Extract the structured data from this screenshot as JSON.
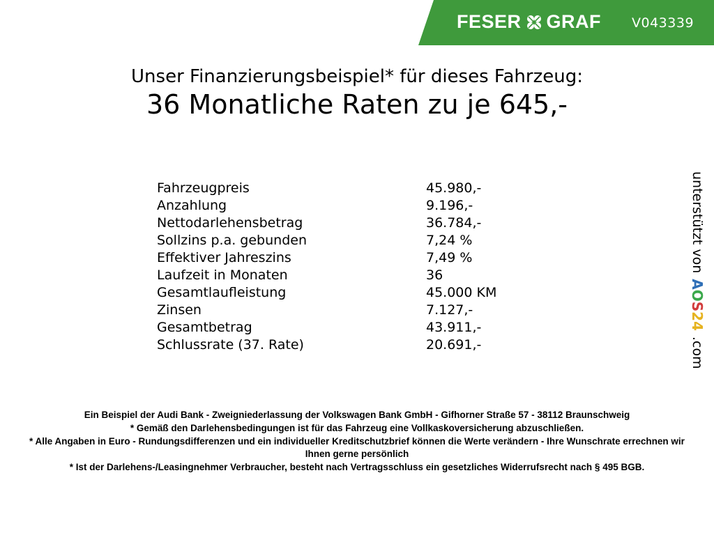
{
  "header": {
    "brand": "FESER GRAF",
    "brand_left": "FESER",
    "brand_right": "GRAF",
    "vehicle_id": "V043339",
    "brand_color": "#3f9a3c",
    "logo_icon": "clover-icon"
  },
  "title": {
    "line1": "Unser Finanzierungsbeispiel* für dieses Fahrzeug:",
    "line2": "36 Monatliche Raten zu je 645,-"
  },
  "finance_table": [
    {
      "label": "Fahrzeugpreis",
      "value": "45.980,-"
    },
    {
      "label": "Anzahlung",
      "value": "9.196,-"
    },
    {
      "label": "Nettodarlehensbetrag",
      "value": "36.784,-"
    },
    {
      "label": "Sollzins p.a. gebunden",
      "value": "7,24 %"
    },
    {
      "label": "Effektiver Jahreszins",
      "value": "7,49 %"
    },
    {
      "label": "Laufzeit in Monaten",
      "value": "36"
    },
    {
      "label": "Gesamtlaufleistung",
      "value": "45.000 KM"
    },
    {
      "label": "Zinsen",
      "value": "7.127,-"
    },
    {
      "label": "Gesamtbetrag",
      "value": "43.911,-"
    },
    {
      "label": "Schlussrate (37. Rate)",
      "value": "20.691,-"
    }
  ],
  "side": {
    "text": "unterstützt von",
    "aos_letters": [
      "A",
      "O",
      "S",
      "2",
      "4"
    ],
    "aos_colors": [
      "#2f6fb7",
      "#3aa84a",
      "#d23c3c",
      "#e6b320",
      "#e6b320"
    ],
    "domain": ".com"
  },
  "footer": [
    "Ein Beispiel der Audi Bank - Zweigniederlassung der Volkswagen Bank GmbH - Gifhorner Straße 57 - 38112 Braunschweig",
    "* Gemäß den Darlehensbedingungen ist für das Fahrzeug eine Vollkaskoversicherung abzuschließen.",
    "* Alle Angaben in Euro - Rundungsdifferenzen und ein individueller Kreditschutzbrief können die Werte verändern - Ihre Wunschrate errechnen wir Ihnen gerne persönlich",
    "* Ist der Darlehens-/Leasingnehmer Verbraucher, besteht nach Vertragsschluss ein gesetzliches Widerrufsrecht nach § 495 BGB."
  ]
}
